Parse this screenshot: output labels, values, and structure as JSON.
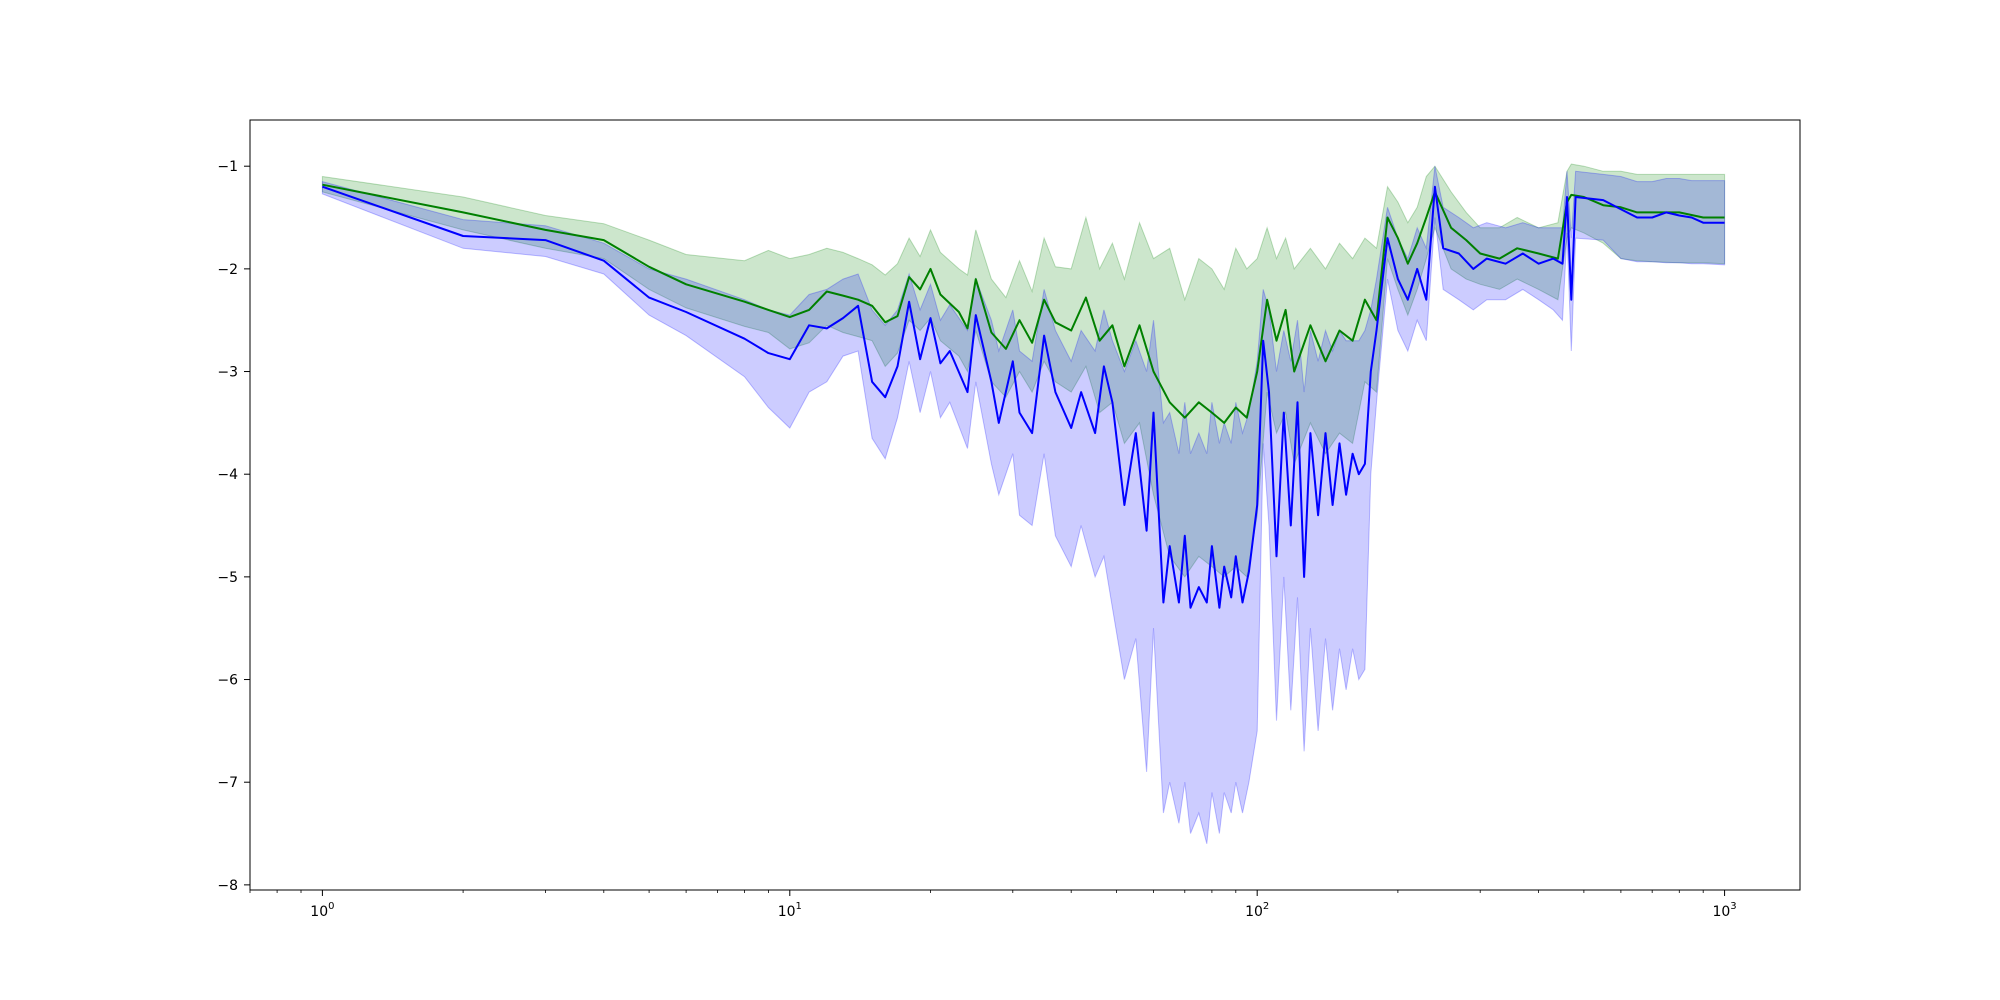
{
  "chart_data": {
    "type": "line",
    "title": "",
    "xlabel": "",
    "ylabel": "",
    "xscale": "log",
    "xlim": [
      0.7,
      1450
    ],
    "ylim": [
      -8.05,
      -0.55
    ],
    "grid": false,
    "legend": "none",
    "x_ticks": [
      {
        "base": "10",
        "exp": "0",
        "value": 1
      },
      {
        "base": "10",
        "exp": "1",
        "value": 10
      },
      {
        "base": "10",
        "exp": "2",
        "value": 100
      },
      {
        "base": "10",
        "exp": "3",
        "value": 1000
      }
    ],
    "y_ticks": [
      {
        "label": "−1",
        "value": -1
      },
      {
        "label": "−2",
        "value": -2
      },
      {
        "label": "−3",
        "value": -3
      },
      {
        "label": "−4",
        "value": -4
      },
      {
        "label": "−5",
        "value": -5
      },
      {
        "label": "−6",
        "value": -6
      },
      {
        "label": "−7",
        "value": -7
      },
      {
        "label": "−8",
        "value": -8
      }
    ],
    "series": [
      {
        "color": "#008000",
        "band_color": "#008000",
        "points": [
          [
            1,
            -1.18,
            -1.1,
            -1.25
          ],
          [
            2,
            -1.45,
            -1.3,
            -1.62
          ],
          [
            3,
            -1.62,
            -1.48,
            -1.8
          ],
          [
            4,
            -1.72,
            -1.56,
            -1.9
          ],
          [
            5,
            -1.98,
            -1.72,
            -2.2
          ],
          [
            6,
            -2.15,
            -1.86,
            -2.38
          ],
          [
            8,
            -2.32,
            -1.92,
            -2.56
          ],
          [
            9,
            -2.4,
            -1.82,
            -2.62
          ],
          [
            10,
            -2.47,
            -1.9,
            -2.78
          ],
          [
            11,
            -2.4,
            -1.86,
            -2.72
          ],
          [
            12,
            -2.22,
            -1.8,
            -2.55
          ],
          [
            13,
            -2.26,
            -1.84,
            -2.62
          ],
          [
            14,
            -2.3,
            -1.9,
            -2.66
          ],
          [
            15,
            -2.36,
            -1.96,
            -2.7
          ],
          [
            16,
            -2.52,
            -2.06,
            -2.95
          ],
          [
            17,
            -2.46,
            -1.95,
            -2.82
          ],
          [
            18,
            -2.08,
            -1.7,
            -2.5
          ],
          [
            19,
            -2.2,
            -1.88,
            -2.6
          ],
          [
            20,
            -2.0,
            -1.62,
            -2.48
          ],
          [
            21,
            -2.25,
            -1.84,
            -2.7
          ],
          [
            23,
            -2.42,
            -2.0,
            -2.85
          ],
          [
            24,
            -2.58,
            -2.06,
            -3.0
          ],
          [
            25,
            -2.1,
            -1.62,
            -2.6
          ],
          [
            27,
            -2.62,
            -2.1,
            -3.1
          ],
          [
            29,
            -2.78,
            -2.28,
            -3.25
          ],
          [
            31,
            -2.5,
            -1.92,
            -3.0
          ],
          [
            33,
            -2.72,
            -2.22,
            -3.2
          ],
          [
            35,
            -2.3,
            -1.7,
            -2.9
          ],
          [
            37,
            -2.52,
            -1.98,
            -3.1
          ],
          [
            40,
            -2.6,
            -2.0,
            -3.2
          ],
          [
            43,
            -2.28,
            -1.5,
            -2.95
          ],
          [
            46,
            -2.7,
            -2.0,
            -3.4
          ],
          [
            49,
            -2.55,
            -1.75,
            -3.3
          ],
          [
            52,
            -2.95,
            -2.1,
            -3.7
          ],
          [
            56,
            -2.55,
            -1.55,
            -3.5
          ],
          [
            60,
            -3.0,
            -1.9,
            -4.2
          ],
          [
            65,
            -3.3,
            -1.8,
            -4.8
          ],
          [
            70,
            -3.45,
            -2.3,
            -5.0
          ],
          [
            75,
            -3.3,
            -1.9,
            -4.8
          ],
          [
            80,
            -3.4,
            -2.0,
            -4.9
          ],
          [
            85,
            -3.5,
            -2.2,
            -5.0
          ],
          [
            90,
            -3.35,
            -1.8,
            -4.9
          ],
          [
            95,
            -3.45,
            -2.0,
            -5.0
          ],
          [
            100,
            -3.0,
            -1.9,
            -4.4
          ],
          [
            105,
            -2.3,
            -1.6,
            -3.2
          ],
          [
            110,
            -2.7,
            -1.9,
            -3.6
          ],
          [
            115,
            -2.4,
            -1.7,
            -3.4
          ],
          [
            120,
            -3.0,
            -2.0,
            -3.9
          ],
          [
            130,
            -2.55,
            -1.8,
            -3.5
          ],
          [
            140,
            -2.9,
            -2.0,
            -3.8
          ],
          [
            150,
            -2.6,
            -1.75,
            -3.6
          ],
          [
            160,
            -2.7,
            -1.9,
            -3.7
          ],
          [
            170,
            -2.3,
            -1.7,
            -3.1
          ],
          [
            180,
            -2.5,
            -1.8,
            -3.2
          ],
          [
            190,
            -1.5,
            -1.2,
            -1.9
          ],
          [
            200,
            -1.7,
            -1.35,
            -2.2
          ],
          [
            210,
            -1.95,
            -1.55,
            -2.45
          ],
          [
            220,
            -1.75,
            -1.4,
            -2.2
          ],
          [
            230,
            -1.5,
            -1.1,
            -1.9
          ],
          [
            240,
            -1.25,
            -1.0,
            -1.6
          ],
          [
            260,
            -1.6,
            -1.25,
            -2.0
          ],
          [
            280,
            -1.72,
            -1.45,
            -2.1
          ],
          [
            300,
            -1.85,
            -1.6,
            -2.15
          ],
          [
            330,
            -1.9,
            -1.6,
            -2.2
          ],
          [
            360,
            -1.8,
            -1.5,
            -2.1
          ],
          [
            400,
            -1.85,
            -1.6,
            -2.2
          ],
          [
            440,
            -1.9,
            -1.55,
            -2.3
          ],
          [
            460,
            -1.35,
            -1.05,
            -1.7
          ],
          [
            470,
            -1.28,
            -0.98,
            -1.6
          ],
          [
            500,
            -1.3,
            -1.0,
            -1.65
          ],
          [
            550,
            -1.38,
            -1.05,
            -1.75
          ],
          [
            600,
            -1.4,
            -1.05,
            -1.9
          ],
          [
            650,
            -1.45,
            -1.08,
            -1.92
          ],
          [
            700,
            -1.45,
            -1.08,
            -1.93
          ],
          [
            800,
            -1.45,
            -1.08,
            -1.94
          ],
          [
            900,
            -1.5,
            -1.08,
            -1.94
          ],
          [
            1000,
            -1.5,
            -1.08,
            -1.95
          ]
        ]
      },
      {
        "color": "#0000ff",
        "band_color": "#0000ff",
        "points": [
          [
            1,
            -1.2,
            -1.15,
            -1.27
          ],
          [
            2,
            -1.68,
            -1.52,
            -1.8
          ],
          [
            3,
            -1.72,
            -1.58,
            -1.88
          ],
          [
            4,
            -1.92,
            -1.75,
            -2.05
          ],
          [
            5,
            -2.28,
            -2.0,
            -2.45
          ],
          [
            6,
            -2.42,
            -2.1,
            -2.65
          ],
          [
            8,
            -2.68,
            -2.3,
            -3.05
          ],
          [
            9,
            -2.82,
            -2.4,
            -3.35
          ],
          [
            10,
            -2.88,
            -2.45,
            -3.55
          ],
          [
            11,
            -2.55,
            -2.25,
            -3.2
          ],
          [
            12,
            -2.58,
            -2.2,
            -3.1
          ],
          [
            13,
            -2.48,
            -2.1,
            -2.85
          ],
          [
            14,
            -2.36,
            -2.05,
            -2.8
          ],
          [
            15,
            -3.1,
            -2.4,
            -3.65
          ],
          [
            16,
            -3.25,
            -2.55,
            -3.85
          ],
          [
            17,
            -2.95,
            -2.4,
            -3.45
          ],
          [
            18,
            -2.32,
            -2.05,
            -2.9
          ],
          [
            19,
            -2.88,
            -2.4,
            -3.4
          ],
          [
            20,
            -2.48,
            -2.15,
            -3.0
          ],
          [
            21,
            -2.92,
            -2.5,
            -3.45
          ],
          [
            22,
            -2.8,
            -2.35,
            -3.3
          ],
          [
            24,
            -3.2,
            -2.6,
            -3.75
          ],
          [
            25,
            -2.45,
            -2.1,
            -3.1
          ],
          [
            27,
            -3.1,
            -2.5,
            -3.9
          ],
          [
            28,
            -3.5,
            -2.8,
            -4.2
          ],
          [
            30,
            -2.9,
            -2.4,
            -3.8
          ],
          [
            31,
            -3.4,
            -2.8,
            -4.4
          ],
          [
            33,
            -3.6,
            -2.9,
            -4.5
          ],
          [
            35,
            -2.65,
            -2.2,
            -3.8
          ],
          [
            37,
            -3.2,
            -2.6,
            -4.6
          ],
          [
            40,
            -3.55,
            -2.9,
            -4.9
          ],
          [
            42,
            -3.2,
            -2.6,
            -4.5
          ],
          [
            45,
            -3.6,
            -2.8,
            -5.0
          ],
          [
            47,
            -2.95,
            -2.4,
            -4.8
          ],
          [
            49,
            -3.3,
            -2.7,
            -5.3
          ],
          [
            52,
            -4.3,
            -3.0,
            -6.0
          ],
          [
            55,
            -3.6,
            -2.7,
            -5.6
          ],
          [
            58,
            -4.55,
            -3.0,
            -6.9
          ],
          [
            60,
            -3.4,
            -2.5,
            -5.5
          ],
          [
            63,
            -5.25,
            -3.5,
            -7.3
          ],
          [
            65,
            -4.7,
            -3.4,
            -7.0
          ],
          [
            68,
            -5.25,
            -3.8,
            -7.4
          ],
          [
            70,
            -4.6,
            -3.3,
            -7.0
          ],
          [
            72,
            -5.3,
            -3.8,
            -7.5
          ],
          [
            75,
            -5.1,
            -3.6,
            -7.3
          ],
          [
            78,
            -5.25,
            -3.8,
            -7.6
          ],
          [
            80,
            -4.7,
            -3.3,
            -7.1
          ],
          [
            83,
            -5.3,
            -3.7,
            -7.5
          ],
          [
            85,
            -4.9,
            -3.5,
            -7.1
          ],
          [
            88,
            -5.2,
            -3.7,
            -7.3
          ],
          [
            90,
            -4.8,
            -3.3,
            -7.0
          ],
          [
            93,
            -5.25,
            -3.6,
            -7.3
          ],
          [
            96,
            -4.95,
            -3.4,
            -7.0
          ],
          [
            100,
            -4.3,
            -2.9,
            -6.5
          ],
          [
            103,
            -2.7,
            -2.2,
            -3.7
          ],
          [
            106,
            -3.2,
            -2.4,
            -4.5
          ],
          [
            110,
            -4.8,
            -3.0,
            -6.4
          ],
          [
            114,
            -3.4,
            -2.6,
            -5.0
          ],
          [
            118,
            -4.5,
            -2.9,
            -6.3
          ],
          [
            122,
            -3.3,
            -2.5,
            -5.2
          ],
          [
            126,
            -5.0,
            -3.2,
            -6.7
          ],
          [
            130,
            -3.6,
            -2.6,
            -5.5
          ],
          [
            135,
            -4.4,
            -2.9,
            -6.5
          ],
          [
            140,
            -3.6,
            -2.6,
            -5.6
          ],
          [
            145,
            -4.3,
            -2.8,
            -6.3
          ],
          [
            150,
            -3.7,
            -2.6,
            -5.7
          ],
          [
            155,
            -4.2,
            -2.7,
            -6.1
          ],
          [
            160,
            -3.8,
            -2.7,
            -5.7
          ],
          [
            165,
            -4.0,
            -2.7,
            -6.0
          ],
          [
            170,
            -3.9,
            -2.6,
            -5.9
          ],
          [
            175,
            -3.0,
            -2.4,
            -4.0
          ],
          [
            180,
            -2.6,
            -2.1,
            -3.3
          ],
          [
            190,
            -1.7,
            -1.4,
            -2.1
          ],
          [
            200,
            -2.1,
            -1.7,
            -2.6
          ],
          [
            210,
            -2.3,
            -1.9,
            -2.8
          ],
          [
            220,
            -2.0,
            -1.6,
            -2.5
          ],
          [
            230,
            -2.3,
            -1.8,
            -2.7
          ],
          [
            240,
            -1.2,
            -1.0,
            -1.5
          ],
          [
            250,
            -1.8,
            -1.4,
            -2.2
          ],
          [
            270,
            -1.85,
            -1.5,
            -2.3
          ],
          [
            290,
            -2.0,
            -1.6,
            -2.4
          ],
          [
            310,
            -1.9,
            -1.55,
            -2.3
          ],
          [
            340,
            -1.95,
            -1.6,
            -2.3
          ],
          [
            370,
            -1.85,
            -1.55,
            -2.2
          ],
          [
            400,
            -1.95,
            -1.6,
            -2.3
          ],
          [
            430,
            -1.9,
            -1.6,
            -2.4
          ],
          [
            450,
            -1.95,
            -1.6,
            -2.5
          ],
          [
            460,
            -1.3,
            -1.05,
            -1.65
          ],
          [
            470,
            -2.3,
            -1.7,
            -2.8
          ],
          [
            480,
            -1.3,
            -1.05,
            -1.7
          ],
          [
            550,
            -1.33,
            -1.08,
            -1.72
          ],
          [
            600,
            -1.42,
            -1.1,
            -1.9
          ],
          [
            650,
            -1.5,
            -1.15,
            -1.93
          ],
          [
            700,
            -1.5,
            -1.15,
            -1.93
          ],
          [
            750,
            -1.45,
            -1.12,
            -1.94
          ],
          [
            800,
            -1.48,
            -1.12,
            -1.94
          ],
          [
            850,
            -1.5,
            -1.14,
            -1.95
          ],
          [
            900,
            -1.55,
            -1.14,
            -1.95
          ],
          [
            1000,
            -1.55,
            -1.14,
            -1.96
          ]
        ]
      }
    ]
  }
}
